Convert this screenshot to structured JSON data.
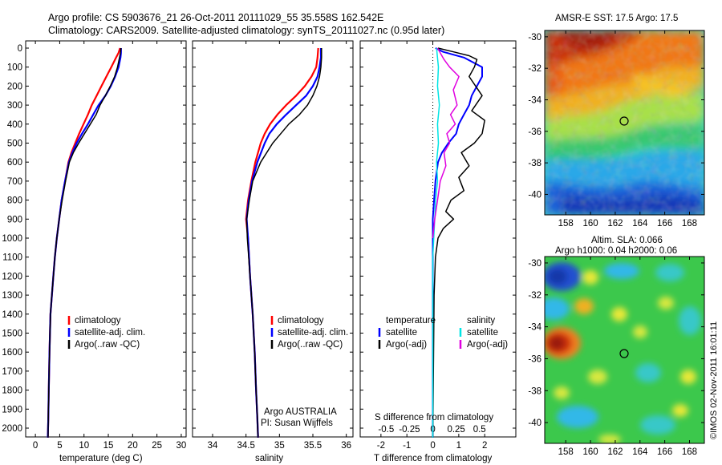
{
  "header": {
    "line1": "Argo profile: CS 5903676_21 26-Oct-2011 20111029_55 35.558S 162.542E",
    "line2": "Climatology: CARS2009. Satellite-adjusted climatology: synTS_20111027.nc (0.95d later)"
  },
  "colors": {
    "climatology": "#ff0000",
    "satellite": "#0000ff",
    "argo": "#000000",
    "sal_satellite": "#00e5e5",
    "sal_argo": "#e000e0"
  },
  "chart_data": [
    {
      "type": "line",
      "id": "temperature",
      "xlabel": "temperature (deg C)",
      "xlim": [
        -2,
        31
      ],
      "xticks": [
        0,
        5,
        10,
        15,
        20,
        25,
        30
      ],
      "xtick_labels": [
        "0",
        "5",
        "10",
        "15",
        "20",
        "25",
        "30"
      ],
      "ylim": [
        2060,
        0
      ],
      "yticks": [
        0,
        100,
        200,
        300,
        400,
        500,
        600,
        700,
        800,
        900,
        1000,
        1100,
        1200,
        1300,
        1400,
        1500,
        1600,
        1700,
        1800,
        1900,
        2000
      ],
      "ytick_labels": [
        "0",
        "100",
        "200",
        "300",
        "400",
        "500",
        "600",
        "700",
        "800",
        "900",
        "1000",
        "1100",
        "1200",
        "1300",
        "1400",
        "1500",
        "1600",
        "1700",
        "1800",
        "1900",
        "2000"
      ],
      "legend": [
        {
          "label": "climatology",
          "color": "#ff0000"
        },
        {
          "label": "satellite-adj. clim.",
          "color": "#0000ff"
        },
        {
          "label": "Argo(..raw -QC)",
          "color": "#000000"
        }
      ],
      "series": [
        {
          "name": "climatology",
          "color": "#ff0000",
          "width": 2.2,
          "x": [
            17.4,
            17.1,
            16.6,
            15.6,
            14.6,
            13.6,
            12.6,
            11.6,
            10.8,
            9.9,
            9.0,
            8.2,
            7.4,
            6.8,
            6.1,
            5.4,
            4.9,
            4.4,
            4.0,
            3.7,
            3.4,
            3.1,
            2.9,
            2.75,
            2.65,
            2.55
          ],
          "y": [
            0,
            25,
            50,
            100,
            150,
            200,
            250,
            300,
            350,
            400,
            450,
            500,
            550,
            600,
            700,
            800,
            900,
            1000,
            1100,
            1200,
            1300,
            1400,
            1600,
            1800,
            1950,
            2050
          ]
        },
        {
          "name": "satellite-adj. clim.",
          "color": "#0000ff",
          "width": 2.2,
          "x": [
            17.6,
            17.6,
            17.5,
            17.1,
            16.4,
            15.5,
            14.4,
            13.0,
            11.9,
            10.8,
            9.6,
            8.5,
            7.6,
            6.9,
            6.1,
            5.4,
            4.9,
            4.4,
            4.0,
            3.7,
            3.4,
            3.1,
            2.9,
            2.75,
            2.65,
            2.55
          ],
          "y": [
            0,
            25,
            50,
            100,
            150,
            200,
            250,
            300,
            350,
            400,
            450,
            500,
            550,
            600,
            700,
            800,
            900,
            1000,
            1100,
            1200,
            1300,
            1400,
            1600,
            1800,
            1950,
            2050
          ]
        },
        {
          "name": "Argo(..raw -QC)",
          "color": "#000000",
          "width": 1.5,
          "x": [
            17.6,
            17.5,
            17.3,
            16.9,
            16.3,
            15.4,
            14.4,
            13.3,
            12.5,
            11.3,
            10.1,
            8.9,
            7.8,
            7.0,
            6.2,
            5.5,
            4.9,
            4.4,
            4.0,
            3.7,
            3.4,
            3.1,
            2.9,
            2.75,
            2.65,
            2.6
          ],
          "y": [
            0,
            25,
            50,
            100,
            150,
            200,
            250,
            300,
            350,
            400,
            450,
            500,
            550,
            600,
            700,
            800,
            900,
            1000,
            1100,
            1200,
            1300,
            1400,
            1600,
            1800,
            1950,
            2050
          ]
        }
      ]
    },
    {
      "type": "line",
      "id": "salinity",
      "xlabel": "salinity",
      "xlim": [
        33.7,
        36.1
      ],
      "xticks": [
        34,
        34.5,
        35,
        35.5,
        36
      ],
      "xtick_labels": [
        "34",
        "34.5",
        "35",
        "35.5",
        "36"
      ],
      "ylim": [
        2060,
        0
      ],
      "legend": [
        {
          "label": "climatology",
          "color": "#ff0000"
        },
        {
          "label": "satellite-adj. clim.",
          "color": "#0000ff"
        },
        {
          "label": "Argo(..raw -QC)",
          "color": "#000000"
        }
      ],
      "annotation": [
        "Argo AUSTRALIA",
        "PI: Susan Wijffels"
      ],
      "series": [
        {
          "name": "climatology",
          "color": "#ff0000",
          "width": 2.2,
          "x": [
            35.58,
            35.57,
            35.55,
            35.48,
            35.38,
            35.25,
            35.1,
            34.97,
            34.86,
            34.78,
            34.72,
            34.64,
            34.58,
            34.53,
            34.5,
            34.53,
            34.56,
            34.6,
            34.63,
            34.65,
            34.67,
            34.68
          ],
          "y": [
            0,
            50,
            100,
            150,
            200,
            250,
            300,
            350,
            400,
            450,
            500,
            600,
            700,
            800,
            900,
            1000,
            1200,
            1400,
            1600,
            1800,
            1950,
            2050
          ]
        },
        {
          "name": "satellite-adj. clim.",
          "color": "#0000ff",
          "width": 2.2,
          "x": [
            35.62,
            35.62,
            35.6,
            35.57,
            35.5,
            35.4,
            35.25,
            35.1,
            34.96,
            34.85,
            34.78,
            34.67,
            34.59,
            34.54,
            34.51,
            34.53,
            34.56,
            34.6,
            34.63,
            34.65,
            34.67,
            34.68
          ],
          "y": [
            0,
            50,
            100,
            150,
            200,
            250,
            300,
            350,
            400,
            450,
            500,
            600,
            700,
            800,
            900,
            1000,
            1200,
            1400,
            1600,
            1800,
            1950,
            2050
          ]
        },
        {
          "name": "Argo(..raw -QC)",
          "color": "#000000",
          "width": 1.5,
          "x": [
            35.63,
            35.63,
            35.62,
            35.6,
            35.56,
            35.5,
            35.42,
            35.3,
            35.14,
            35.02,
            34.9,
            34.72,
            34.6,
            34.55,
            34.51,
            34.52,
            34.56,
            34.6,
            34.63,
            34.65,
            34.67,
            34.68
          ],
          "y": [
            0,
            50,
            100,
            150,
            200,
            250,
            300,
            350,
            400,
            450,
            500,
            600,
            700,
            800,
            900,
            1000,
            1200,
            1400,
            1600,
            1800,
            1950,
            2050
          ]
        }
      ]
    },
    {
      "type": "line",
      "id": "difference",
      "xlabel_top": "S difference from climatology",
      "xlabel_bottom": "T difference from climatology",
      "x_top_ticks": [
        -0.5,
        -0.25,
        0,
        0.25,
        0.5
      ],
      "x_top_tick_labels": [
        "-0.5",
        "-0.25",
        "0",
        "0.25",
        "0.5"
      ],
      "x_bottom_ticks": [
        -2,
        -1,
        0,
        1,
        2
      ],
      "x_bottom_tick_labels": [
        "-2",
        "-1",
        "0",
        "1",
        "2"
      ],
      "xlim_T": [
        -2.8,
        3.2
      ],
      "ylim": [
        2060,
        0
      ],
      "legend_headers": [
        "temperature",
        "salinity"
      ],
      "legend": [
        {
          "label": "satellite",
          "color": "#0000ff",
          "group": "temperature"
        },
        {
          "label": "Argo(-adj)",
          "color": "#000000",
          "group": "temperature"
        },
        {
          "label": "satellite",
          "color": "#00e5e5",
          "group": "salinity"
        },
        {
          "label": "Argo(-adj)",
          "color": "#e000e0",
          "group": "salinity"
        }
      ],
      "series": [
        {
          "name": "T satellite",
          "color": "#0000ff",
          "width": 2,
          "x": [
            0.1,
            0.4,
            1.2,
            1.9,
            1.9,
            1.7,
            1.5,
            1.4,
            1.2,
            1.0,
            0.9,
            0.6,
            0.35,
            0.2,
            0.1,
            0.05,
            0,
            0,
            0,
            0,
            0
          ],
          "y": [
            0,
            20,
            50,
            100,
            150,
            200,
            250,
            300,
            350,
            400,
            450,
            500,
            550,
            600,
            700,
            800,
            900,
            1200,
            1500,
            1800,
            2050
          ]
        },
        {
          "name": "T Argo(-adj)",
          "color": "#000000",
          "width": 1.5,
          "x": [
            0.2,
            0.8,
            1.4,
            1.7,
            1.6,
            1.4,
            1.9,
            1.5,
            2.0,
            1.9,
            1.6,
            1.1,
            1.4,
            1.0,
            1.2,
            0.7,
            0.5,
            0.8,
            0.4,
            0.2,
            0.1,
            0.05,
            0
          ],
          "y": [
            0,
            20,
            40,
            60,
            100,
            150,
            250,
            330,
            380,
            450,
            500,
            550,
            620,
            680,
            750,
            800,
            860,
            900,
            950,
            1000,
            1100,
            1300,
            2050
          ]
        },
        {
          "name": "S satellite",
          "color": "#00e5e5",
          "width": 1.5,
          "x": [
            0.04,
            0.06,
            0.05,
            0.07,
            0.05,
            0.06,
            0.04,
            0.05,
            0.03,
            0.02,
            0.01,
            0,
            0
          ],
          "y": [
            0,
            100,
            200,
            300,
            400,
            500,
            600,
            700,
            800,
            900,
            1000,
            1100,
            2050
          ]
        },
        {
          "name": "S Argo(-adj)",
          "color": "#e000e0",
          "width": 1.5,
          "x": [
            0.05,
            0.12,
            0.18,
            0.28,
            0.22,
            0.26,
            0.19,
            0.24,
            0.15,
            0.18,
            0.12,
            0.14,
            0.08,
            0.05,
            0.02,
            0
          ],
          "y": [
            0,
            60,
            100,
            150,
            220,
            300,
            350,
            400,
            450,
            500,
            550,
            620,
            700,
            800,
            900,
            1000
          ]
        }
      ]
    },
    {
      "type": "heatmap",
      "id": "amsre-sst",
      "title": "AMSR-E SST: 17.5 Argo: 17.5",
      "xlim": [
        156.3,
        169.2
      ],
      "ylim": [
        -41.3,
        -29.6
      ],
      "xticks": [
        158,
        160,
        162,
        164,
        166,
        168
      ],
      "xtick_labels": [
        "158",
        "160",
        "162",
        "164",
        "166",
        "168"
      ],
      "yticks": [
        -30,
        -32,
        -34,
        -36,
        -38,
        -40
      ],
      "ytick_labels": [
        "-30",
        "-32",
        "-34",
        "-36",
        "-38",
        "-40"
      ],
      "marker": {
        "lon": 162.54,
        "lat": -35.56
      }
    },
    {
      "type": "heatmap",
      "id": "altimetry-sla",
      "title_line1": "Altim. SLA: 0.066",
      "title_line2": "Argo h1000: 0.04 h2000: 0.06",
      "xlim": [
        156.3,
        169.2
      ],
      "ylim": [
        -41.3,
        -29.6
      ],
      "xticks": [
        158,
        160,
        162,
        164,
        166,
        168
      ],
      "xtick_labels": [
        "158",
        "160",
        "162",
        "164",
        "166",
        "168"
      ],
      "yticks": [
        -30,
        -32,
        -34,
        -36,
        -38,
        -40
      ],
      "ytick_labels": [
        "-30",
        "-32",
        "-34",
        "-36",
        "-38",
        "-40"
      ],
      "marker": {
        "lon": 162.54,
        "lat": -35.56
      }
    }
  ],
  "footer": {
    "credit": "©IMOS 02-Nov-2011 16:01:11"
  }
}
